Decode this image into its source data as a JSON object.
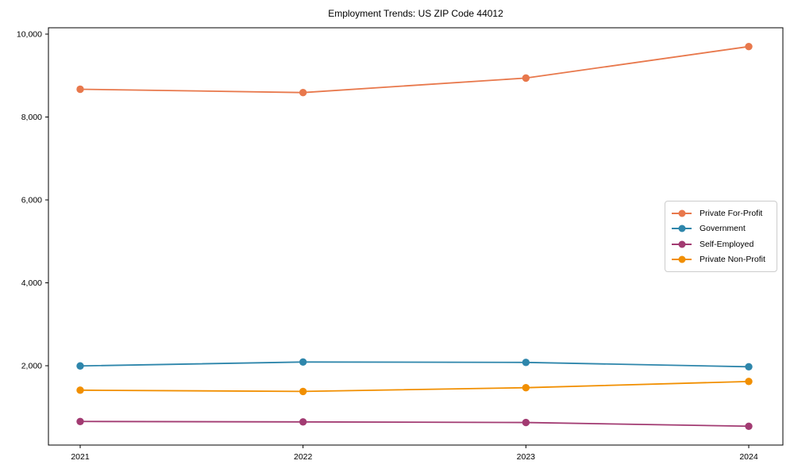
{
  "chart_data": {
    "type": "line",
    "title": "Employment Trends: US ZIP Code 44012",
    "categories": [
      "2021",
      "2022",
      "2023",
      "2024"
    ],
    "series": [
      {
        "name": "Private For-Profit",
        "color": "#E8784C",
        "values": [
          8670,
          8590,
          8940,
          9700
        ]
      },
      {
        "name": "Government",
        "color": "#2E86AB",
        "values": [
          1995,
          2090,
          2080,
          1975
        ]
      },
      {
        "name": "Self-Employed",
        "color": "#A23B72",
        "values": [
          655,
          645,
          630,
          540
        ]
      },
      {
        "name": "Private Non-Profit",
        "color": "#F18F01",
        "values": [
          1410,
          1380,
          1470,
          1620
        ]
      }
    ],
    "yticks": [
      {
        "value": 2000,
        "label": "2,000"
      },
      {
        "value": 4000,
        "label": "4,000"
      },
      {
        "value": 6000,
        "label": "6,000"
      },
      {
        "value": 8000,
        "label": "8,000"
      },
      {
        "value": 10000,
        "label": "10,000"
      }
    ],
    "xlabel": "",
    "ylabel": "",
    "ylim": [
      90,
      10190
    ],
    "grid": false,
    "marker": "circle",
    "legend_position": "center-right",
    "background": "#ffffff",
    "axis_color": "#000000",
    "text_color": "#000000"
  }
}
